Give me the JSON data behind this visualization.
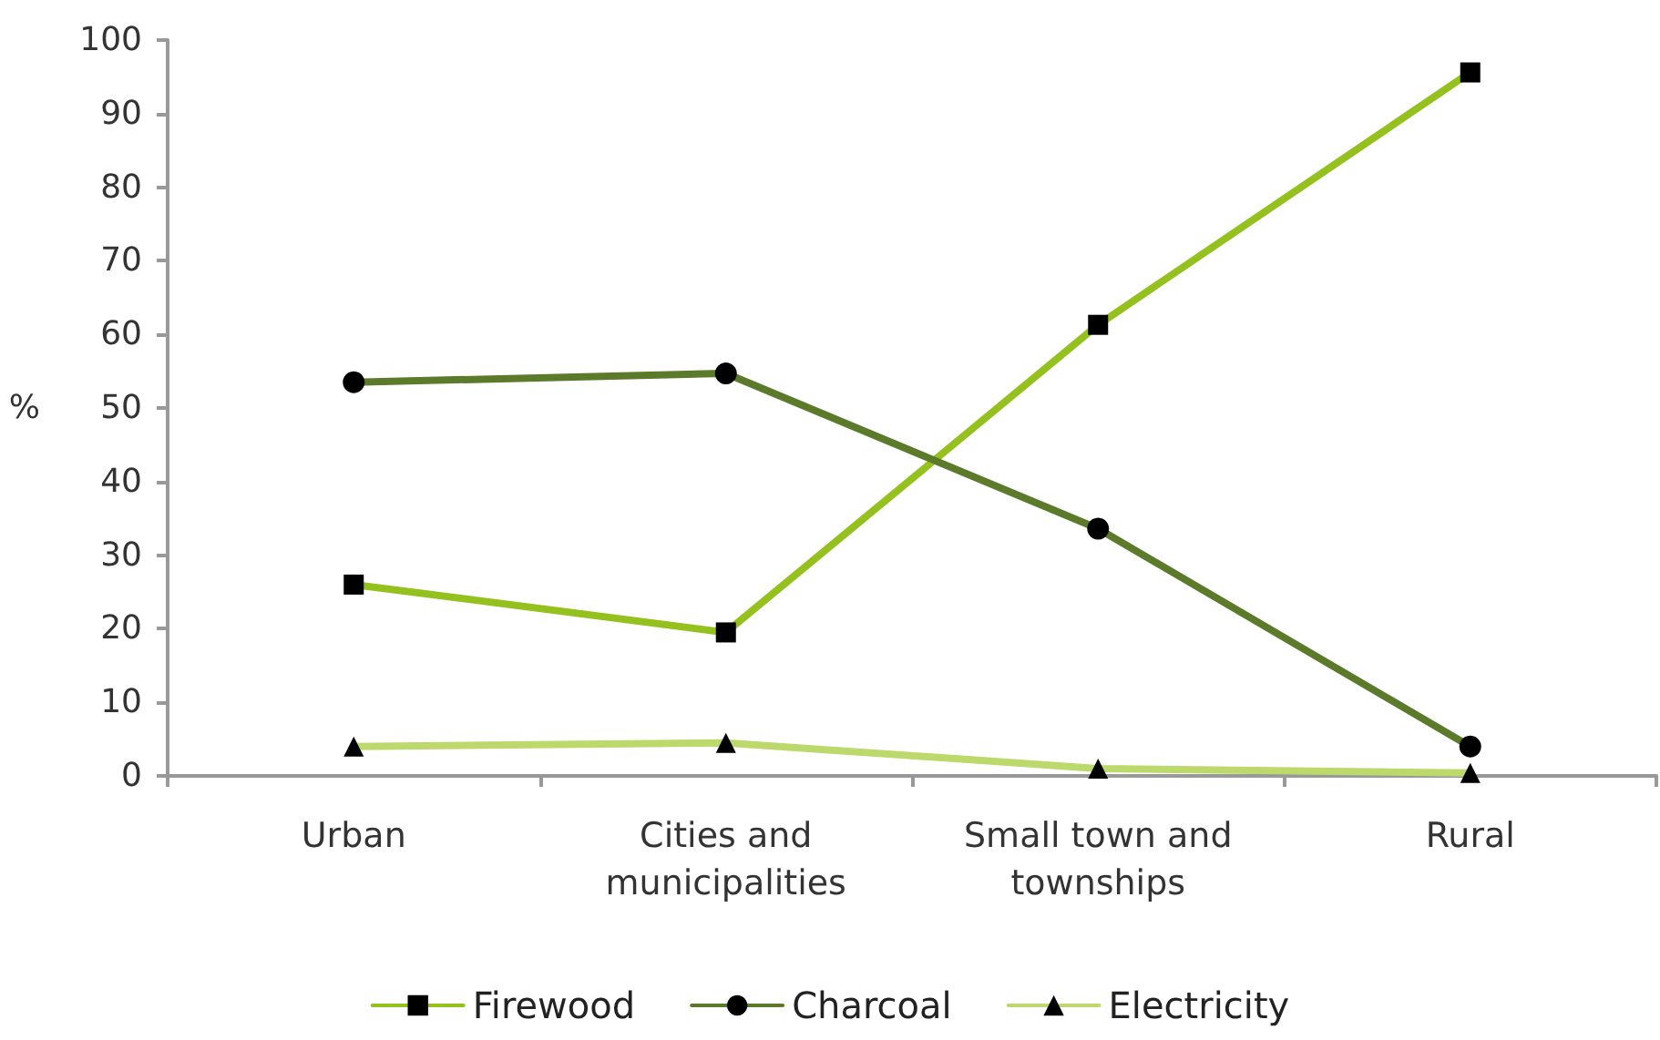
{
  "chart_data": {
    "type": "line",
    "categories": [
      "Urban",
      "Cities and\nmunicipalities",
      "Small town and\ntownships",
      "Rural"
    ],
    "series": [
      {
        "name": "Firewood",
        "color": "#95c11f",
        "marker": "square",
        "values": [
          26,
          19.5,
          61.3,
          95.6
        ]
      },
      {
        "name": "Charcoal",
        "color": "#5b7b2b",
        "marker": "circle",
        "values": [
          53.5,
          54.7,
          33.6,
          4
        ]
      },
      {
        "name": "Electricity",
        "color": "#bcd96c",
        "marker": "triangle",
        "values": [
          4,
          4.5,
          1,
          0.4
        ]
      }
    ],
    "ylabel": "%",
    "ylim": [
      0,
      100
    ],
    "yticks": [
      0,
      10,
      20,
      30,
      40,
      50,
      60,
      70,
      80,
      90,
      100
    ],
    "grid": false,
    "legend": "bottom",
    "line_style": "solid"
  }
}
